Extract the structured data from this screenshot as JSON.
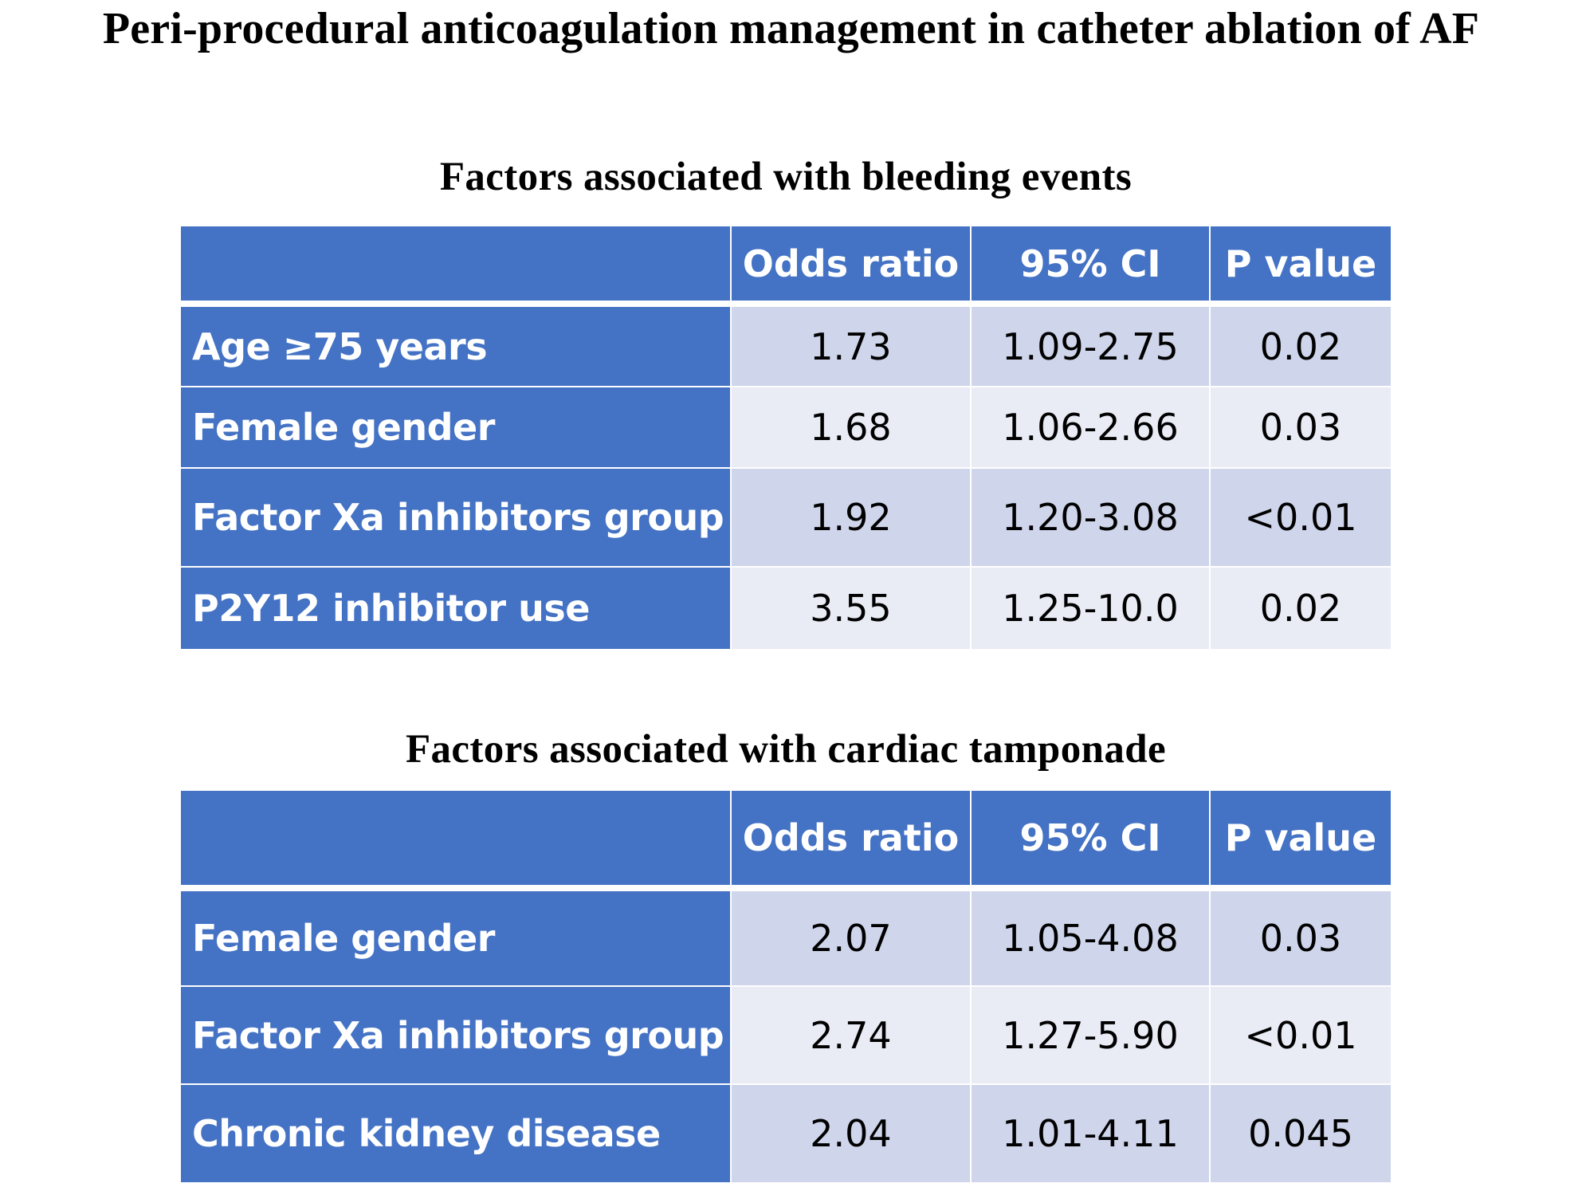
{
  "title": "Peri-procedural anticoagulation management in catheter ablation of AF",
  "tables": [
    {
      "title": "Factors associated with bleeding events",
      "columns": [
        "",
        "Odds ratio",
        "95% CI",
        "P value"
      ],
      "rows": [
        {
          "factor": "Age ≥75 years",
          "odds_ratio": "1.73",
          "ci": "1.09-2.75",
          "p_value": "0.02"
        },
        {
          "factor": "Female gender",
          "odds_ratio": "1.68",
          "ci": "1.06-2.66",
          "p_value": "0.03"
        },
        {
          "factor": "Factor Xa inhibitors group",
          "odds_ratio": "1.92",
          "ci": "1.20-3.08",
          "p_value": "<0.01"
        },
        {
          "factor": "P2Y12 inhibitor use",
          "odds_ratio": "3.55",
          "ci": "1.25-10.0",
          "p_value": "0.02"
        }
      ]
    },
    {
      "title": "Factors associated with cardiac tamponade",
      "columns": [
        "",
        "Odds ratio",
        "95% CI",
        "P value"
      ],
      "rows": [
        {
          "factor": "Female gender",
          "odds_ratio": "2.07",
          "ci": "1.05-4.08",
          "p_value": "0.03"
        },
        {
          "factor": "Factor Xa inhibitors group",
          "odds_ratio": "2.74",
          "ci": "1.27-5.90",
          "p_value": "<0.01"
        },
        {
          "factor": "Chronic kidney disease",
          "odds_ratio": "2.04",
          "ci": "1.01-4.11",
          "p_value": "0.045"
        }
      ]
    }
  ],
  "colors": {
    "header": "#4472c4",
    "row_odd": "#cfd5ea",
    "row_even": "#e9ebf5"
  }
}
